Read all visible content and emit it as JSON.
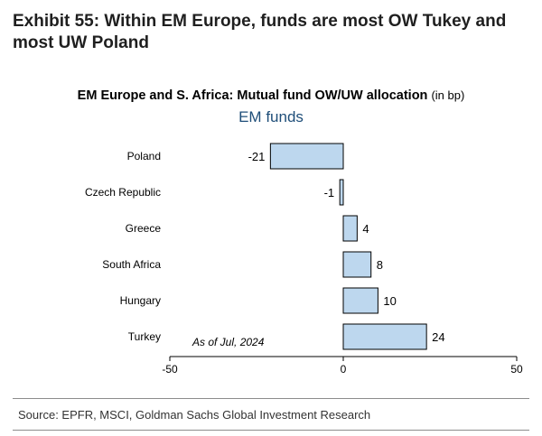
{
  "exhibit": {
    "title": "Exhibit 55: Within EM Europe, funds are most OW Tukey and most UW Poland"
  },
  "source": "Source: EPFR, MSCI, Goldman Sachs Global Investment Research",
  "chart_data": {
    "type": "bar",
    "orientation": "horizontal",
    "title": "EM Europe and S. Africa: Mutual fund OW/UW allocation",
    "title_unit": "(in bp)",
    "subtitle": "EM funds",
    "categories": [
      "Poland",
      "Czech Republic",
      "Greece",
      "South Africa",
      "Hungary",
      "Turkey"
    ],
    "values": [
      -21,
      -1,
      4,
      8,
      10,
      24
    ],
    "data_labels": [
      "-21",
      "-1",
      "4",
      "8",
      "10",
      "24"
    ],
    "xlim": [
      -50,
      50
    ],
    "xticks": [
      -50,
      0,
      50
    ],
    "xtick_labels": [
      "-50",
      "0",
      "50"
    ],
    "annotation": "As of Jul, 2024",
    "bar_color": "#bdd7ee",
    "bar_edge_color": "#000000",
    "grid": false
  }
}
